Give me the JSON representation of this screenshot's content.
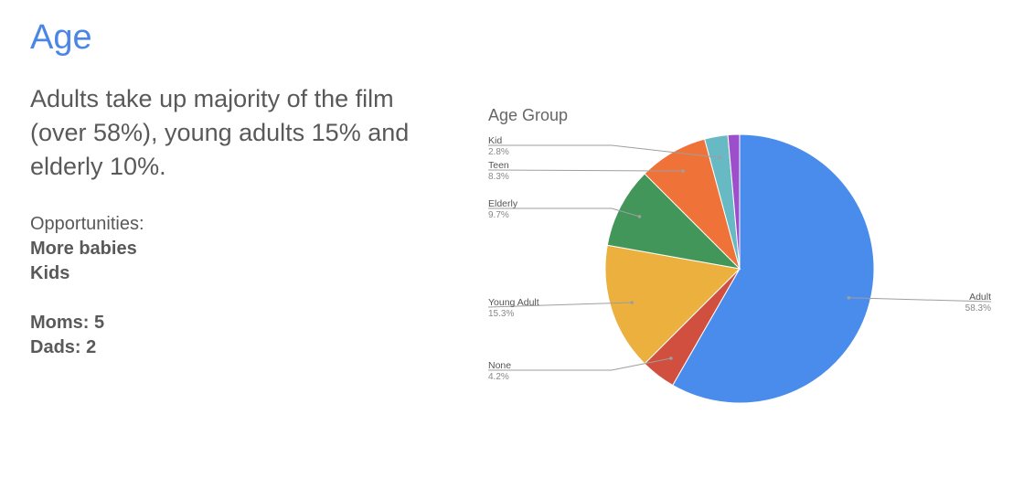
{
  "slide": {
    "title": "Age",
    "body": "Adults take up majority of the film (over 58%), young adults 15% and elderly 10%.",
    "opportunities_label": "Opportunities:",
    "opportunities": [
      "More babies",
      "Kids"
    ],
    "counts": [
      "Moms: 5",
      "Dads: 2"
    ]
  },
  "chart_data": {
    "type": "pie",
    "title": "Age Group",
    "slices": [
      {
        "label": "Adult",
        "value": 58.3,
        "display": "58.3%",
        "color": "#4a8ceb"
      },
      {
        "label": "None",
        "value": 4.2,
        "display": "4.2%",
        "color": "#d14f3f"
      },
      {
        "label": "Young Adult",
        "value": 15.3,
        "display": "15.3%",
        "color": "#ebb03d"
      },
      {
        "label": "Elderly",
        "value": 9.7,
        "display": "9.7%",
        "color": "#43965a"
      },
      {
        "label": "Teen",
        "value": 8.3,
        "display": "8.3%",
        "color": "#ef7339"
      },
      {
        "label": "Kid",
        "value": 2.8,
        "display": "2.8%",
        "color": "#67bac4"
      },
      {
        "label": "",
        "value": 1.4,
        "display": "",
        "color": "#9d4fcb"
      }
    ],
    "legend": "none"
  }
}
